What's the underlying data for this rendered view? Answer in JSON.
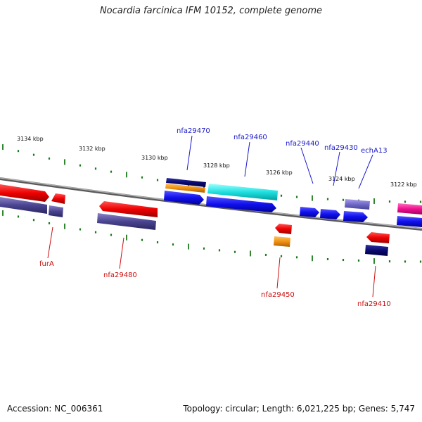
{
  "title": "Nocardia farcinica IFM 10152, complete genome",
  "kbp_ticks": [
    "3134 kbp",
    "3132 kbp",
    "3130 kbp",
    "3128 kbp",
    "3126 kbp",
    "3124 kbp",
    "3122 kbp"
  ],
  "labels_top": [
    "nfa29470",
    "nfa29460",
    "nfa29440",
    "nfa29430",
    "echA13"
  ],
  "labels_bottom": [
    "furA",
    "nfa29480",
    "nfa29450",
    "nfa29410"
  ],
  "footer": {
    "accession": "Accession: NC_006361",
    "topology": "Topology: circular;",
    "length": "Length: 6,021,225 bp;",
    "genes": "Genes: 5,747"
  },
  "colors": {
    "label_top": "#1a1acc",
    "label_bottom": "#cc1010",
    "tick": "#1a7a1a",
    "backbone": "#8a8a8a"
  }
}
